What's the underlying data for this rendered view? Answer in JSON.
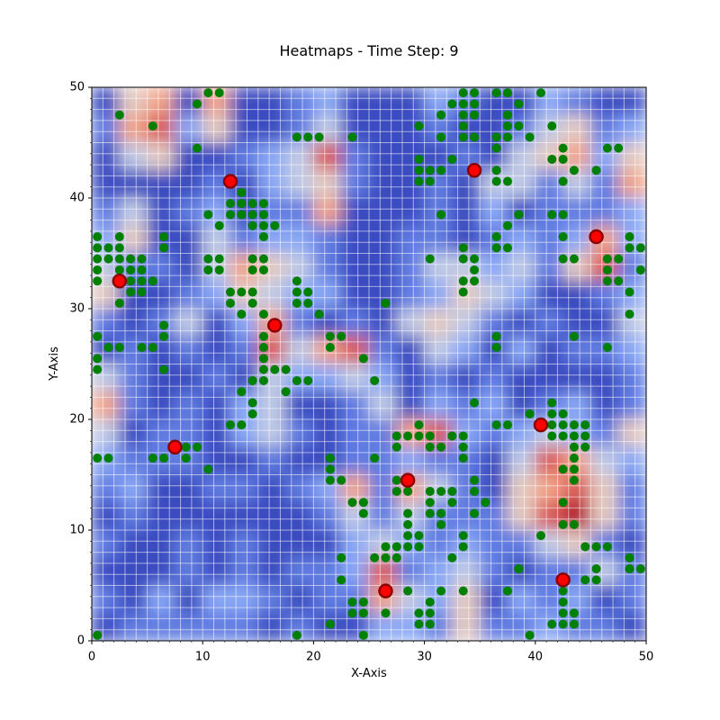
{
  "chart_data": {
    "type": "heatmap",
    "title": "Heatmaps - Time Step: 9",
    "x_label": "X-Axis",
    "y_label": "Y-Axis",
    "xlim": [
      0,
      50
    ],
    "ylim": [
      0,
      50
    ],
    "xticks": [
      0,
      10,
      20,
      30,
      40,
      50
    ],
    "yticks": [
      0,
      10,
      20,
      30,
      40,
      50
    ],
    "minor_tick_step": 1,
    "grid": true,
    "grid_color": "#ffffff",
    "heatmap": {
      "colormap": "coolwarm",
      "origin": "upper",
      "values": [
        [
          2,
          6,
          7,
          2,
          7,
          2,
          2,
          3,
          4,
          2,
          2,
          2,
          4,
          3,
          2,
          2,
          4,
          3,
          2,
          2
        ],
        [
          3,
          7,
          8,
          4,
          6,
          2,
          2,
          3,
          5,
          2,
          2,
          2,
          3,
          2,
          2,
          3,
          5,
          6,
          3,
          4
        ],
        [
          2,
          5,
          6,
          2,
          2,
          3,
          4,
          5,
          8,
          3,
          2,
          2,
          2,
          3,
          2,
          5,
          6,
          7,
          4,
          6
        ],
        [
          2,
          2,
          2,
          2,
          3,
          2,
          4,
          5,
          6,
          3,
          2,
          2,
          3,
          2,
          5,
          5,
          3,
          5,
          3,
          7
        ],
        [
          3,
          5,
          2,
          3,
          4,
          2,
          3,
          3,
          7,
          2,
          2,
          2,
          3,
          2,
          4,
          2,
          3,
          3,
          3,
          4
        ],
        [
          4,
          6,
          2,
          2,
          5,
          3,
          4,
          4,
          3,
          2,
          2,
          3,
          3,
          2,
          3,
          4,
          3,
          4,
          7,
          4
        ],
        [
          5,
          3,
          3,
          2,
          5,
          7,
          6,
          5,
          3,
          2,
          2,
          3,
          5,
          5,
          4,
          5,
          3,
          6,
          8,
          3
        ],
        [
          6,
          2,
          2,
          3,
          4,
          6,
          5,
          4,
          4,
          2,
          2,
          3,
          4,
          6,
          5,
          4,
          2,
          2,
          3,
          4
        ],
        [
          3,
          2,
          3,
          5,
          2,
          4,
          7,
          3,
          2,
          3,
          2,
          5,
          6,
          5,
          3,
          2,
          3,
          2,
          2,
          5
        ],
        [
          2,
          3,
          2,
          3,
          2,
          3,
          8,
          5,
          7,
          8,
          3,
          2,
          5,
          4,
          2,
          4,
          2,
          3,
          3,
          4
        ],
        [
          5,
          3,
          2,
          2,
          3,
          2,
          5,
          4,
          4,
          5,
          4,
          2,
          3,
          2,
          3,
          2,
          2,
          2,
          2,
          3
        ],
        [
          7,
          3,
          2,
          3,
          2,
          4,
          5,
          2,
          2,
          3,
          5,
          2,
          4,
          3,
          4,
          2,
          3,
          4,
          2,
          3
        ],
        [
          5,
          2,
          3,
          3,
          2,
          4,
          5,
          3,
          2,
          3,
          3,
          7,
          8,
          4,
          3,
          4,
          5,
          4,
          3,
          6
        ],
        [
          4,
          3,
          3,
          3,
          2,
          2,
          3,
          2,
          2,
          3,
          3,
          4,
          3,
          3,
          2,
          5,
          8,
          7,
          5,
          4
        ],
        [
          3,
          4,
          2,
          2,
          3,
          3,
          2,
          3,
          4,
          7,
          3,
          7,
          5,
          3,
          2,
          6,
          7,
          8,
          6,
          3
        ],
        [
          2,
          3,
          2,
          2,
          2,
          2,
          2,
          2,
          3,
          5,
          3,
          5,
          3,
          3,
          3,
          6,
          8,
          9,
          6,
          3
        ],
        [
          3,
          2,
          2,
          3,
          2,
          3,
          2,
          2,
          2,
          4,
          5,
          4,
          3,
          4,
          3,
          3,
          5,
          6,
          3,
          2
        ],
        [
          2,
          2,
          2,
          3,
          2,
          3,
          2,
          3,
          3,
          4,
          8,
          3,
          4,
          5,
          3,
          2,
          3,
          3,
          5,
          3
        ],
        [
          3,
          2,
          4,
          2,
          4,
          4,
          3,
          2,
          3,
          3,
          7,
          5,
          4,
          6,
          2,
          4,
          3,
          4,
          2,
          3
        ],
        [
          2,
          3,
          3,
          3,
          3,
          3,
          2,
          3,
          2,
          2,
          4,
          4,
          3,
          6,
          3,
          3,
          4,
          3,
          3,
          2
        ]
      ]
    },
    "series": [
      {
        "color": "#008000",
        "marker_edge": "#008000",
        "x": [
          2.5,
          5.5,
          9.5,
          10.5,
          11.5,
          9.5,
          18.5,
          19.5,
          20.5,
          23.5,
          29.5,
          31.5,
          31.5,
          32.5,
          33.5,
          34.5,
          33.5,
          34.5,
          33.5,
          34.5,
          33.5,
          33.5,
          34.5,
          36.5,
          37.5,
          37.5,
          38.5,
          38.5,
          37.5,
          36.5,
          36.5,
          37.5,
          39.5,
          40.5,
          41.5,
          42.5,
          42.5,
          43.5,
          46.5,
          47.5,
          45.5,
          29.5,
          29.5,
          30.5,
          31.5,
          29.5,
          30.5,
          32.5,
          36.5,
          37.5,
          36.5,
          41.5,
          42.5,
          10.5,
          11.5,
          13.5,
          12.5,
          13.5,
          14.5,
          15.5,
          12.5,
          13.5,
          14.5,
          15.5,
          14.5,
          15.5,
          16.5,
          15.5,
          0.5,
          2.5,
          0.5,
          1.5,
          2.5,
          0.5,
          1.5,
          2.5,
          3.5,
          4.5,
          0.5,
          2.5,
          3.5,
          4.5,
          0.5,
          3.5,
          4.5,
          5.5,
          3.5,
          4.5,
          2.5,
          6.5,
          6.5,
          10.5,
          11.5,
          10.5,
          11.5,
          14.5,
          15.5,
          14.5,
          15.5,
          12.5,
          13.5,
          14.5,
          12.5,
          14.5,
          13.5,
          15.5,
          18.5,
          18.5,
          19.5,
          18.5,
          19.5,
          20.5,
          0.5,
          0.5,
          0.5,
          1.5,
          2.5,
          4.5,
          5.5,
          6.5,
          6.5,
          6.5,
          15.5,
          15.5,
          15.5,
          15.5,
          16.5,
          17.5,
          14.5,
          15.5,
          18.5,
          19.5,
          13.5,
          17.5,
          14.5,
          13.5,
          12.5,
          14.5,
          21.5,
          22.5,
          21.5,
          24.5,
          25.5,
          26.5,
          31.5,
          33.5,
          36.5,
          37.5,
          38.5,
          36.5,
          37.5,
          41.5,
          42.5,
          42.5,
          42.5,
          43.5,
          46.5,
          47.5,
          48.5,
          48.5,
          49.5,
          49.5,
          46.5,
          46.5,
          47.5,
          48.5,
          48.5,
          30.5,
          33.5,
          34.5,
          34.5,
          33.5,
          34.5,
          33.5,
          36.5,
          36.5,
          43.5,
          46.5,
          34.5,
          36.5,
          37.5,
          39.5,
          41.5,
          41.5,
          42.5,
          41.5,
          42.5,
          43.5,
          44.5,
          41.5,
          42.5,
          43.5,
          44.5,
          43.5,
          43.5,
          44.5,
          42.5,
          43.5,
          43.5,
          42.5,
          42.5,
          43.5,
          40.5,
          29.5,
          27.5,
          28.5,
          29.5,
          30.5,
          32.5,
          33.5,
          27.5,
          30.5,
          31.5,
          33.5,
          33.5,
          34.5,
          34.5,
          30.5,
          31.5,
          32.5,
          30.5,
          32.5,
          30.5,
          31.5,
          31.5,
          34.5,
          28.5,
          27.5,
          27.5,
          28.5,
          28.5,
          28.5,
          29.5,
          28.5,
          29.5,
          33.5,
          33.5,
          5.5,
          6.5,
          8.5,
          9.5,
          8.5,
          10.5,
          0.5,
          1.5,
          21.5,
          21.5,
          21.5,
          22.5,
          25.5,
          23.5,
          24.5,
          24.5,
          26.5,
          27.5,
          26.5,
          27.5,
          22.5,
          22.5,
          25.5,
          23.5,
          24.5,
          23.5,
          24.5,
          21.5,
          24.5,
          26.5,
          28.5,
          29.5,
          30.5,
          30.5,
          30.5,
          29.5,
          31.5,
          33.5,
          32.5,
          35.5,
          37.5,
          38.5,
          39.5,
          41.5,
          42.5,
          42.5,
          42.5,
          42.5,
          43.5,
          43.5,
          44.5,
          44.5,
          45.5,
          46.5,
          45.5,
          45.5,
          48.5,
          48.5,
          49.5,
          18.5,
          0.5
        ],
        "values": [
          47.5,
          46.5,
          48.5,
          49.5,
          49.5,
          44.5,
          45.5,
          45.5,
          45.5,
          45.5,
          46.5,
          47.5,
          45.5,
          48.5,
          49.5,
          49.5,
          48.5,
          48.5,
          47.5,
          47.5,
          46.5,
          45.5,
          45.5,
          49.5,
          49.5,
          47.5,
          48.5,
          46.5,
          46.5,
          45.5,
          44.5,
          45.5,
          45.5,
          49.5,
          46.5,
          44.5,
          43.5,
          42.5,
          44.5,
          44.5,
          42.5,
          43.5,
          42.5,
          42.5,
          42.5,
          41.5,
          41.5,
          43.5,
          41.5,
          41.5,
          42.5,
          43.5,
          41.5,
          38.5,
          37.5,
          40.5,
          39.5,
          39.5,
          39.5,
          39.5,
          38.5,
          38.5,
          38.5,
          38.5,
          37.5,
          37.5,
          37.5,
          36.5,
          36.5,
          36.5,
          35.5,
          35.5,
          35.5,
          34.5,
          34.5,
          34.5,
          34.5,
          34.5,
          33.5,
          33.5,
          33.5,
          33.5,
          32.5,
          32.5,
          32.5,
          32.5,
          31.5,
          31.5,
          30.5,
          36.5,
          35.5,
          34.5,
          34.5,
          33.5,
          33.5,
          34.5,
          34.5,
          33.5,
          33.5,
          31.5,
          31.5,
          31.5,
          30.5,
          30.5,
          29.5,
          29.5,
          32.5,
          31.5,
          31.5,
          30.5,
          30.5,
          29.5,
          27.5,
          25.5,
          24.5,
          26.5,
          26.5,
          26.5,
          26.5,
          28.5,
          27.5,
          24.5,
          27.5,
          26.5,
          25.5,
          24.5,
          24.5,
          24.5,
          23.5,
          23.5,
          23.5,
          23.5,
          22.5,
          22.5,
          20.5,
          19.5,
          19.5,
          21.5,
          27.5,
          27.5,
          26.5,
          25.5,
          23.5,
          30.5,
          38.5,
          35.5,
          36.5,
          37.5,
          38.5,
          35.5,
          35.5,
          38.5,
          38.5,
          36.5,
          34.5,
          34.5,
          34.5,
          34.5,
          36.5,
          35.5,
          35.5,
          33.5,
          33.5,
          32.5,
          32.5,
          31.5,
          29.5,
          34.5,
          34.5,
          34.5,
          33.5,
          32.5,
          32.5,
          31.5,
          27.5,
          26.5,
          27.5,
          26.5,
          21.5,
          19.5,
          19.5,
          20.5,
          21.5,
          20.5,
          20.5,
          19.5,
          19.5,
          19.5,
          19.5,
          18.5,
          18.5,
          18.5,
          18.5,
          17.5,
          16.5,
          17.5,
          15.5,
          15.5,
          14.5,
          12.5,
          10.5,
          10.5,
          9.5,
          19.5,
          18.5,
          18.5,
          18.5,
          18.5,
          18.5,
          18.5,
          17.5,
          17.5,
          17.5,
          17.5,
          16.5,
          14.5,
          13.5,
          13.5,
          13.5,
          13.5,
          12.5,
          12.5,
          11.5,
          11.5,
          10.5,
          11.5,
          13.5,
          14.5,
          13.5,
          11.5,
          10.5,
          9.5,
          9.5,
          8.5,
          8.5,
          9.5,
          8.5,
          16.5,
          16.5,
          17.5,
          17.5,
          16.5,
          15.5,
          16.5,
          16.5,
          16.5,
          15.5,
          14.5,
          14.5,
          16.5,
          12.5,
          12.5,
          11.5,
          8.5,
          8.5,
          7.5,
          7.5,
          7.5,
          5.5,
          7.5,
          3.5,
          3.5,
          2.5,
          2.5,
          1.5,
          0.5,
          2.5,
          4.5,
          2.5,
          2.5,
          3.5,
          1.5,
          1.5,
          4.5,
          4.5,
          7.5,
          12.5,
          4.5,
          6.5,
          0.5,
          1.5,
          4.5,
          3.5,
          2.5,
          1.5,
          2.5,
          1.5,
          5.5,
          8.5,
          8.5,
          8.5,
          6.5,
          5.5,
          7.5,
          6.5,
          6.5,
          0.5,
          0.5
        ]
      },
      {
        "color": "#ff0000",
        "marker_edge": "#8b0000",
        "x": [
          2.5,
          7.5,
          12.5,
          16.5,
          26.5,
          28.5,
          34.5,
          40.5,
          42.5,
          45.5
        ],
        "values": [
          32.5,
          17.5,
          41.5,
          28.5,
          4.5,
          14.5,
          42.5,
          19.5,
          5.5,
          36.5
        ]
      }
    ]
  }
}
